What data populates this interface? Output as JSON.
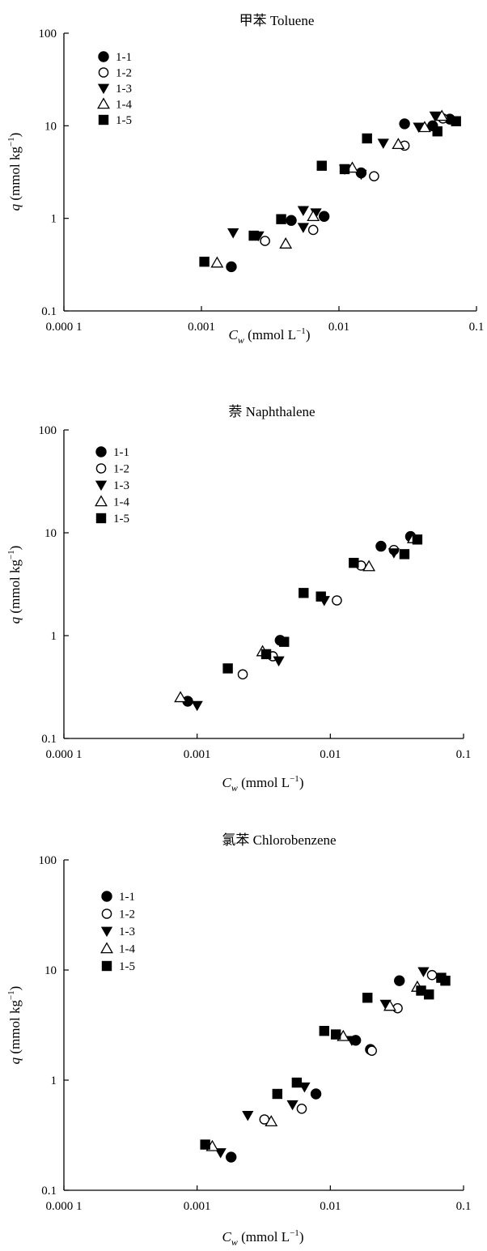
{
  "chart_data": [
    {
      "type": "scatter",
      "title": "甲苯 Toluene",
      "xlabel_main": "C",
      "xlabel_sub": "w",
      "xlabel_rest": " (mmol L",
      "xlabel_exp": "−1",
      "xlabel_close": ")",
      "ylabel_main": "q",
      "ylabel_rest": " (mmol kg",
      "ylabel_exp": "−1",
      "ylabel_close": ")",
      "xscale": "log",
      "yscale": "log",
      "xlim": [
        0.0001,
        0.1
      ],
      "ylim": [
        0.1,
        100
      ],
      "xticks": [
        "0.000 1",
        "0.001",
        "0.01",
        "0.1"
      ],
      "yticks": [
        "0.1",
        "1",
        "10",
        "100"
      ],
      "legend_position": "top-left",
      "series": [
        {
          "name": "1-1",
          "marker": "filled-circle",
          "points": [
            [
              0.00165,
              0.3
            ],
            [
              0.0045,
              0.95
            ],
            [
              0.0078,
              1.05
            ],
            [
              0.0145,
              3.1
            ],
            [
              0.03,
              10.5
            ],
            [
              0.048,
              10.0
            ],
            [
              0.064,
              11.8
            ]
          ]
        },
        {
          "name": "1-2",
          "marker": "open-circle",
          "points": [
            [
              0.0029,
              0.57
            ],
            [
              0.0065,
              0.75
            ],
            [
              0.018,
              2.85
            ],
            [
              0.03,
              6.1
            ],
            [
              0.057,
              12.0
            ]
          ]
        },
        {
          "name": "1-3",
          "marker": "filled-triangle-down",
          "points": [
            [
              0.0017,
              0.7
            ],
            [
              0.0026,
              0.65
            ],
            [
              0.0055,
              0.8
            ],
            [
              0.0055,
              1.22
            ],
            [
              0.0068,
              1.15
            ],
            [
              0.011,
              3.4
            ],
            [
              0.0145,
              3.0
            ],
            [
              0.021,
              6.5
            ],
            [
              0.038,
              9.7
            ],
            [
              0.05,
              12.8
            ]
          ]
        },
        {
          "name": "1-4",
          "marker": "open-triangle-up",
          "points": [
            [
              0.0013,
              0.33
            ],
            [
              0.0041,
              0.53
            ],
            [
              0.0065,
              1.05
            ],
            [
              0.0125,
              3.5
            ],
            [
              0.027,
              6.3
            ],
            [
              0.042,
              9.6
            ],
            [
              0.056,
              12.7
            ]
          ]
        },
        {
          "name": "1-5",
          "marker": "filled-square",
          "points": [
            [
              0.00105,
              0.34
            ],
            [
              0.0024,
              0.65
            ],
            [
              0.0038,
              0.98
            ],
            [
              0.0075,
              3.7
            ],
            [
              0.011,
              3.4
            ],
            [
              0.016,
              7.3
            ],
            [
              0.052,
              8.7
            ],
            [
              0.071,
              11.2
            ]
          ]
        }
      ]
    },
    {
      "type": "scatter",
      "title": "萘 Naphthalene",
      "xlabel_main": "C",
      "xlabel_sub": "w",
      "xlabel_rest": " (mmol L",
      "xlabel_exp": "−1",
      "xlabel_close": ")",
      "ylabel_main": "q",
      "ylabel_rest": " (mmol kg",
      "ylabel_exp": "−1",
      "ylabel_close": ")",
      "xscale": "log",
      "yscale": "log",
      "xlim": [
        0.0001,
        0.1
      ],
      "ylim": [
        0.1,
        100
      ],
      "xticks": [
        "0.000 1",
        "0.001",
        "0.01",
        "0.1"
      ],
      "yticks": [
        "0.1",
        "1",
        "10",
        "100"
      ],
      "legend_position": "top-left",
      "series": [
        {
          "name": "1-1",
          "marker": "filled-circle",
          "points": [
            [
              0.00085,
              0.23
            ],
            [
              0.0042,
              0.9
            ],
            [
              0.024,
              7.4
            ],
            [
              0.04,
              9.2
            ]
          ]
        },
        {
          "name": "1-2",
          "marker": "open-circle",
          "points": [
            [
              0.0022,
              0.42
            ],
            [
              0.0037,
              0.63
            ],
            [
              0.0112,
              2.2
            ],
            [
              0.017,
              4.8
            ],
            [
              0.03,
              6.8
            ]
          ]
        },
        {
          "name": "1-3",
          "marker": "filled-triangle-down",
          "points": [
            [
              0.001,
              0.21
            ],
            [
              0.0041,
              0.57
            ],
            [
              0.009,
              2.2
            ],
            [
              0.03,
              6.4
            ]
          ]
        },
        {
          "name": "1-4",
          "marker": "open-triangle-up",
          "points": [
            [
              0.00075,
              0.25
            ],
            [
              0.0031,
              0.7
            ],
            [
              0.0195,
              4.7
            ],
            [
              0.042,
              8.8
            ]
          ]
        },
        {
          "name": "1-5",
          "marker": "filled-square",
          "points": [
            [
              0.0017,
              0.48
            ],
            [
              0.0033,
              0.66
            ],
            [
              0.0045,
              0.87
            ],
            [
              0.0063,
              2.6
            ],
            [
              0.0085,
              2.4
            ],
            [
              0.015,
              5.1
            ],
            [
              0.036,
              6.2
            ],
            [
              0.045,
              8.6
            ]
          ]
        }
      ]
    },
    {
      "type": "scatter",
      "title": "氯苯 Chlorobenzene",
      "xlabel_main": "C",
      "xlabel_sub": "w",
      "xlabel_rest": " (mmol L",
      "xlabel_exp": "−1",
      "xlabel_close": ")",
      "ylabel_main": "q",
      "ylabel_rest": " (mmol kg",
      "ylabel_exp": "−1",
      "ylabel_close": ")",
      "xscale": "log",
      "yscale": "log",
      "xlim": [
        0.0001,
        0.1
      ],
      "ylim": [
        0.1,
        100
      ],
      "xticks": [
        "0.000 1",
        "0.001",
        "0.01",
        "0.1"
      ],
      "yticks": [
        "0.1",
        "1",
        "10",
        "100"
      ],
      "legend_position": "top-left",
      "series": [
        {
          "name": "1-1",
          "marker": "filled-circle",
          "points": [
            [
              0.0018,
              0.2
            ],
            [
              0.0078,
              0.75
            ],
            [
              0.0155,
              2.3
            ],
            [
              0.02,
              1.9
            ],
            [
              0.033,
              8.0
            ]
          ]
        },
        {
          "name": "1-2",
          "marker": "open-circle",
          "points": [
            [
              0.0032,
              0.44
            ],
            [
              0.0061,
              0.55
            ],
            [
              0.0205,
              1.85
            ],
            [
              0.032,
              4.5
            ],
            [
              0.058,
              9.0
            ]
          ]
        },
        {
          "name": "1-3",
          "marker": "filled-triangle-down",
          "points": [
            [
              0.0015,
              0.22
            ],
            [
              0.0024,
              0.48
            ],
            [
              0.0052,
              0.6
            ],
            [
              0.0064,
              0.87
            ],
            [
              0.0145,
              2.3
            ],
            [
              0.026,
              4.9
            ],
            [
              0.05,
              9.7
            ]
          ]
        },
        {
          "name": "1-4",
          "marker": "open-triangle-up",
          "points": [
            [
              0.0013,
              0.25
            ],
            [
              0.0036,
              0.42
            ],
            [
              0.0125,
              2.5
            ],
            [
              0.028,
              4.7
            ],
            [
              0.045,
              7.0
            ]
          ]
        },
        {
          "name": "1-5",
          "marker": "filled-square",
          "points": [
            [
              0.00115,
              0.26
            ],
            [
              0.004,
              0.75
            ],
            [
              0.0056,
              0.95
            ],
            [
              0.009,
              2.8
            ],
            [
              0.011,
              2.6
            ],
            [
              0.019,
              5.6
            ],
            [
              0.048,
              6.5
            ],
            [
              0.055,
              6.0
            ],
            [
              0.068,
              8.5
            ],
            [
              0.073,
              8.0
            ]
          ]
        }
      ]
    }
  ]
}
